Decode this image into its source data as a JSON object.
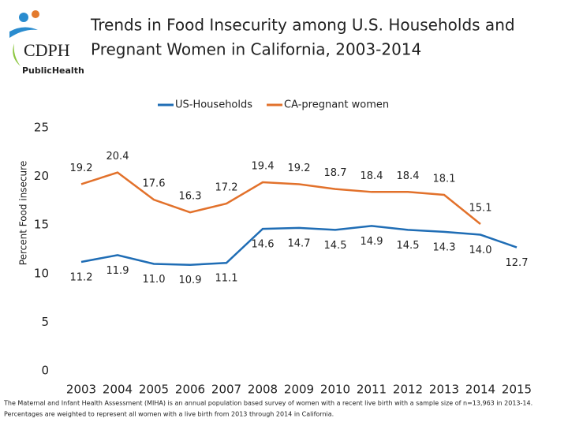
{
  "logo": {
    "name": "CDPH",
    "subtitle": "PublicHealth"
  },
  "chart_data": {
    "type": "line",
    "title": [
      "Trends in Food Insecurity among U.S. Households and",
      "Pregnant Women in California, 2003-2014"
    ],
    "y_label": "Percent Food insecure",
    "categories": [
      "2003",
      "2004",
      "2005",
      "2006",
      "2007",
      "2008",
      "2009",
      "2010",
      "2011",
      "2012",
      "2013",
      "2014",
      "2015"
    ],
    "series": [
      {
        "name": "US-Households",
        "color": "#1f6db5",
        "values": [
          11.2,
          11.9,
          11.0,
          10.9,
          11.1,
          14.6,
          14.7,
          14.5,
          14.9,
          14.5,
          14.3,
          14.0,
          12.7
        ],
        "value_labels": [
          "11.2",
          "11.9",
          "11.0",
          "10.9",
          "11.1",
          "14.6",
          "14.7",
          "14.5",
          "14.9",
          "14.5",
          "14.3",
          "14.0",
          "12.7"
        ]
      },
      {
        "name": "CA-pregnant women",
        "color": "#e2712b",
        "values": [
          19.2,
          20.4,
          17.6,
          16.3,
          17.2,
          19.4,
          19.2,
          18.7,
          18.4,
          18.4,
          18.1,
          15.1,
          null
        ],
        "value_labels": [
          "19.2",
          "20.4",
          "17.6",
          "16.3",
          "17.2",
          "19.4",
          "19.2",
          "18.7",
          "18.4",
          "18.4",
          "18.1",
          "15.1",
          null
        ]
      }
    ],
    "ylim": [
      0,
      25
    ],
    "yticks": [
      0,
      5,
      10,
      15,
      20,
      25
    ],
    "grid": false,
    "legend": "top",
    "footnote": [
      "The Maternal and Infant Health Assessment (MIHA) is an annual population based survey of women with a recent live birth with a sample size of n=13,963 in 2013-14.",
      "Percentages are weighted to represent all women with a live birth from 2013 through 2014 in California."
    ]
  }
}
